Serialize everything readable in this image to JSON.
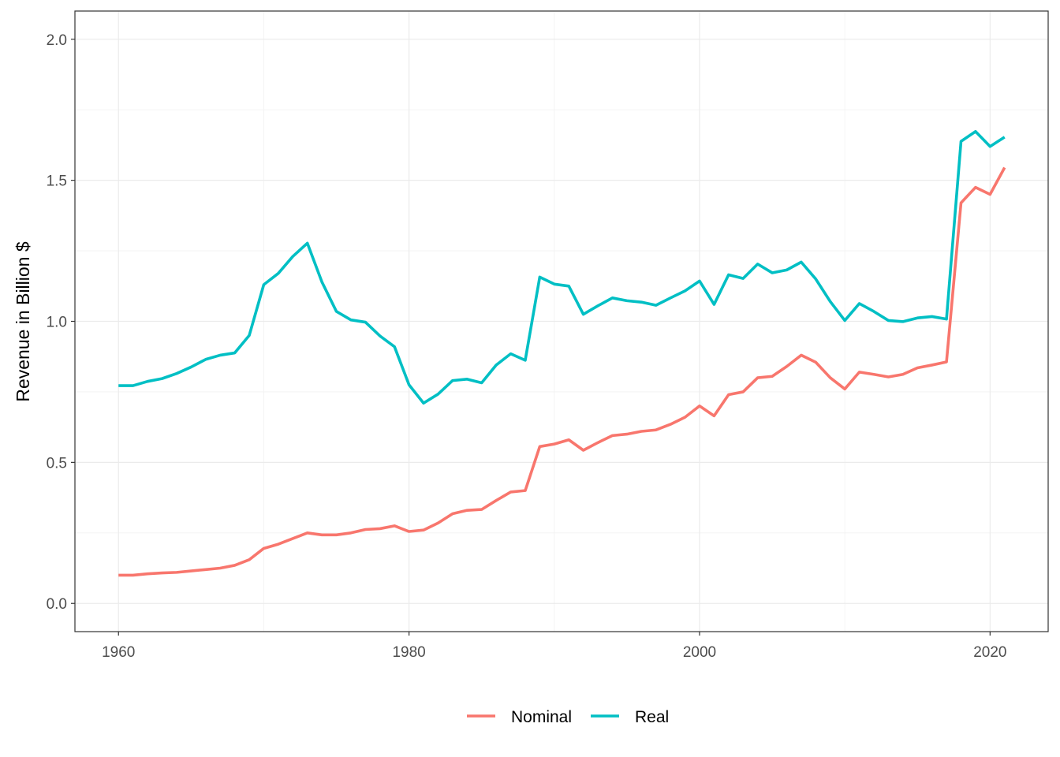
{
  "chart_data": {
    "type": "line",
    "title": "",
    "xlabel": "",
    "ylabel": "Revenue in Billion $",
    "xlim": [
      1957,
      2024
    ],
    "ylim": [
      -0.1,
      2.1
    ],
    "x_ticks": [
      1960,
      1980,
      2000,
      2020
    ],
    "x_tick_labels": [
      "1960",
      "1980",
      "2000",
      "2020"
    ],
    "y_ticks": [
      0.0,
      0.5,
      1.0,
      1.5,
      2.0
    ],
    "y_tick_labels": [
      "0.0",
      "0.5",
      "1.0",
      "1.5",
      "2.0"
    ],
    "grid": true,
    "legend_position": "bottom",
    "x": [
      1960,
      1961,
      1962,
      1963,
      1964,
      1965,
      1966,
      1967,
      1968,
      1969,
      1970,
      1971,
      1972,
      1973,
      1974,
      1975,
      1976,
      1977,
      1978,
      1979,
      1980,
      1981,
      1982,
      1983,
      1984,
      1985,
      1986,
      1987,
      1988,
      1989,
      1990,
      1991,
      1992,
      1993,
      1994,
      1995,
      1996,
      1997,
      1998,
      1999,
      2000,
      2001,
      2002,
      2003,
      2004,
      2005,
      2006,
      2007,
      2008,
      2009,
      2010,
      2011,
      2012,
      2013,
      2014,
      2015,
      2016,
      2017,
      2018,
      2019,
      2020,
      2021
    ],
    "series": [
      {
        "name": "Nominal",
        "color": "#F8766D",
        "values": [
          0.1,
          0.1,
          0.105,
          0.108,
          0.11,
          0.115,
          0.12,
          0.125,
          0.135,
          0.155,
          0.195,
          0.21,
          0.23,
          0.25,
          0.243,
          0.243,
          0.25,
          0.262,
          0.265,
          0.275,
          0.255,
          0.26,
          0.285,
          0.318,
          0.33,
          0.333,
          0.365,
          0.395,
          0.4,
          0.556,
          0.565,
          0.58,
          0.543,
          0.57,
          0.595,
          0.6,
          0.61,
          0.615,
          0.635,
          0.66,
          0.7,
          0.665,
          0.74,
          0.75,
          0.8,
          0.805,
          0.84,
          0.88,
          0.855,
          0.8,
          0.76,
          0.82,
          0.812,
          0.803,
          0.812,
          0.835,
          0.845,
          0.856,
          1.42,
          1.475,
          1.45,
          1.545
        ]
      },
      {
        "name": "Real",
        "color": "#00BFC4",
        "values": [
          0.772,
          0.772,
          0.787,
          0.797,
          0.815,
          0.838,
          0.865,
          0.88,
          0.888,
          0.95,
          1.13,
          1.17,
          1.23,
          1.277,
          1.14,
          1.035,
          1.005,
          0.997,
          0.948,
          0.91,
          0.775,
          0.71,
          0.742,
          0.79,
          0.795,
          0.782,
          0.845,
          0.885,
          0.862,
          1.157,
          1.132,
          1.125,
          1.025,
          1.055,
          1.083,
          1.073,
          1.068,
          1.057,
          1.083,
          1.108,
          1.143,
          1.06,
          1.165,
          1.152,
          1.203,
          1.172,
          1.182,
          1.21,
          1.15,
          1.07,
          1.003,
          1.063,
          1.035,
          1.003,
          0.999,
          1.012,
          1.017,
          1.008,
          1.638,
          1.673,
          1.62,
          1.653
        ]
      }
    ]
  }
}
